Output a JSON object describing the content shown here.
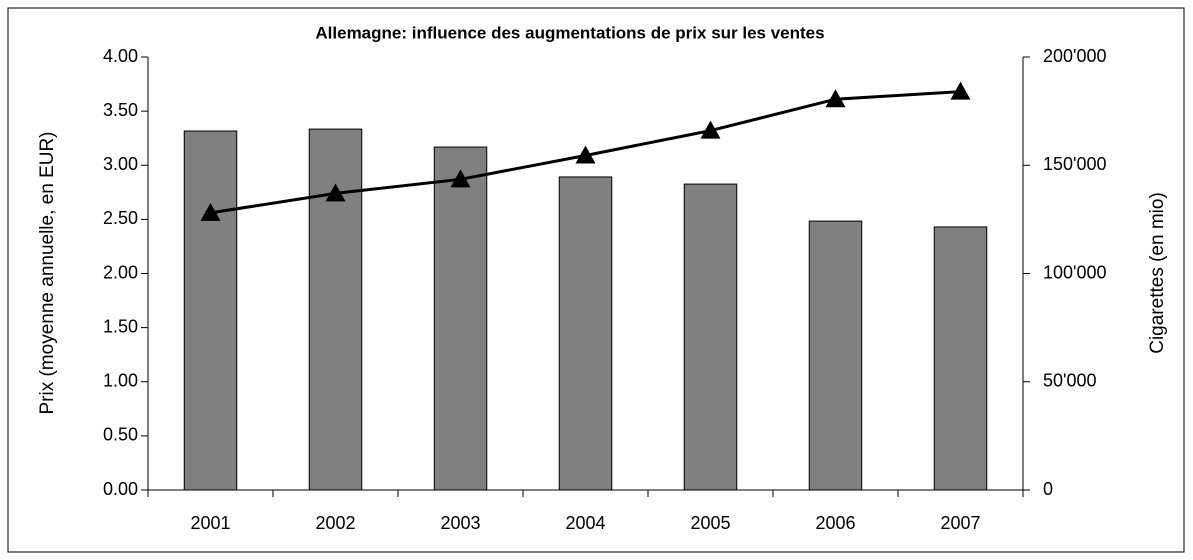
{
  "chart_data": {
    "type": "combo",
    "title": "Allemagne: influence des augmentations de prix sur les ventes",
    "y_label": "Prix (moyenne annuelle, en EUR)",
    "y2_label": "Cigarettes (en mio)",
    "categories": [
      "2001",
      "2002",
      "2003",
      "2004",
      "2005",
      "2006",
      "2007"
    ],
    "series": [
      {
        "type": "bar",
        "axis": "y2",
        "color": "#808080",
        "values": [
          165800,
          166700,
          158400,
          144600,
          141300,
          124200,
          121500
        ]
      },
      {
        "type": "line",
        "axis": "y",
        "color": "#000000",
        "values": [
          2.56,
          2.74,
          2.87,
          3.09,
          3.32,
          3.61,
          3.68
        ]
      }
    ],
    "ylim": [
      0,
      4
    ],
    "yticks": [
      {
        "value": 0,
        "label": "0.00"
      },
      {
        "value": 0.5,
        "label": "0.50"
      },
      {
        "value": 1,
        "label": "1.00"
      },
      {
        "value": 1.5,
        "label": "1.50"
      },
      {
        "value": 2,
        "label": "2.00"
      },
      {
        "value": 2.5,
        "label": "2.50"
      },
      {
        "value": 3,
        "label": "3.00"
      },
      {
        "value": 3.5,
        "label": "3.50"
      },
      {
        "value": 4,
        "label": "4.00"
      }
    ],
    "y2lim": [
      0,
      200000
    ],
    "y2ticks": [
      0,
      {
        "value": 50000,
        "label": "50'000"
      },
      {
        "value": 100000,
        "label": "100'000"
      },
      {
        "value": 150000,
        "label": "150'000"
      },
      {
        "value": 200000,
        "label": "200'000"
      }
    ]
  }
}
